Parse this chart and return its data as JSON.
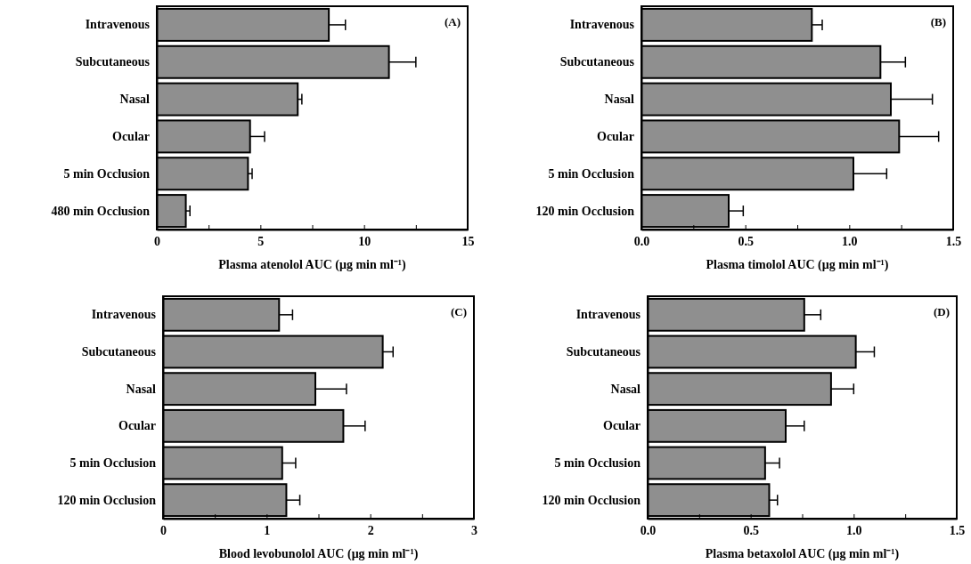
{
  "chart_data": [
    {
      "type": "bar",
      "orientation": "horizontal",
      "categories": [
        "Intravenous",
        "Subcutaneous",
        "Nasal",
        "Ocular",
        "5 min Occlusion",
        "480 min Occlusion"
      ],
      "values": [
        8.3,
        11.2,
        6.8,
        4.5,
        4.4,
        1.4
      ],
      "errors": [
        [
          8.3,
          9.1
        ],
        [
          11.2,
          12.5
        ],
        [
          6.8,
          7.0
        ],
        [
          4.5,
          5.2
        ],
        [
          4.4,
          4.6
        ],
        [
          1.4,
          1.6
        ]
      ],
      "color": "#8f8f8f",
      "xlim": [
        0,
        15
      ],
      "xticks": [
        0,
        {
          "value": 2.5,
          "label": null
        },
        5,
        {
          "value": 7.5,
          "label": null
        },
        10,
        {
          "value": 12.5,
          "label": null
        },
        15
      ],
      "xlabel": "Plasma atenolol AUC (μg min ml⁻¹)",
      "annotations": [
        "(A)"
      ]
    },
    {
      "type": "bar",
      "orientation": "horizontal",
      "categories": [
        "Intravenous",
        "Subcutaneous",
        "Nasal",
        "Ocular",
        "5 min Occlusion",
        "120 min Occlusion"
      ],
      "values": [
        0.82,
        1.15,
        1.2,
        1.24,
        1.02,
        0.42
      ],
      "errors": [
        [
          0.82,
          0.87
        ],
        [
          1.15,
          1.27
        ],
        [
          1.2,
          1.4
        ],
        [
          1.24,
          1.43
        ],
        [
          1.02,
          1.18
        ],
        [
          0.42,
          0.49
        ]
      ],
      "color": "#8f8f8f",
      "xlim": [
        0,
        1.5
      ],
      "xticks": [
        {
          "value": 0,
          "label": "0.0"
        },
        {
          "value": 0.25,
          "label": null
        },
        0.5,
        {
          "value": 0.75,
          "label": null
        },
        {
          "value": 1,
          "label": "1.0"
        },
        {
          "value": 1.25,
          "label": null
        },
        1.5
      ],
      "xlabel": "Plasma timolol AUC (μg min ml⁻¹)",
      "annotations": [
        "(B)"
      ]
    },
    {
      "type": "bar",
      "orientation": "horizontal",
      "categories": [
        "Intravenous",
        "Subcutaneous",
        "Nasal",
        "Ocular",
        "5 min Occlusion",
        "120 min Occlusion"
      ],
      "values": [
        1.12,
        2.12,
        1.47,
        1.74,
        1.15,
        1.19
      ],
      "errors": [
        [
          1.12,
          1.25
        ],
        [
          2.12,
          2.22
        ],
        [
          1.47,
          1.77
        ],
        [
          1.74,
          1.95
        ],
        [
          1.15,
          1.28
        ],
        [
          1.19,
          1.32
        ]
      ],
      "color": "#8f8f8f",
      "xlim": [
        0,
        3
      ],
      "xticks": [
        0,
        {
          "value": 0.5,
          "label": null
        },
        1,
        {
          "value": 1.5,
          "label": null
        },
        2,
        {
          "value": 2.5,
          "label": null
        },
        3
      ],
      "xlabel": "Blood levobunolol AUC (μg min ml⁻¹)",
      "annotations": [
        "(C)"
      ]
    },
    {
      "type": "bar",
      "orientation": "horizontal",
      "categories": [
        "Intravenous",
        "Subcutaneous",
        "Nasal",
        "Ocular",
        "5 min Occlusion",
        "120 min Occlusion"
      ],
      "values": [
        0.76,
        1.01,
        0.89,
        0.67,
        0.57,
        0.59
      ],
      "errors": [
        [
          0.76,
          0.84
        ],
        [
          1.01,
          1.1
        ],
        [
          0.89,
          1.0
        ],
        [
          0.67,
          0.76
        ],
        [
          0.57,
          0.64
        ],
        [
          0.59,
          0.63
        ]
      ],
      "color": "#8f8f8f",
      "xlim": [
        0,
        1.5
      ],
      "xticks": [
        {
          "value": 0,
          "label": "0.0"
        },
        {
          "value": 0.25,
          "label": null
        },
        0.5,
        {
          "value": 0.75,
          "label": null
        },
        {
          "value": 1,
          "label": "1.0"
        },
        {
          "value": 1.25,
          "label": null
        },
        1.5
      ],
      "xlabel": "Plasma betaxolol AUC (μg min ml⁻¹)",
      "annotations": [
        "(D)"
      ]
    }
  ]
}
